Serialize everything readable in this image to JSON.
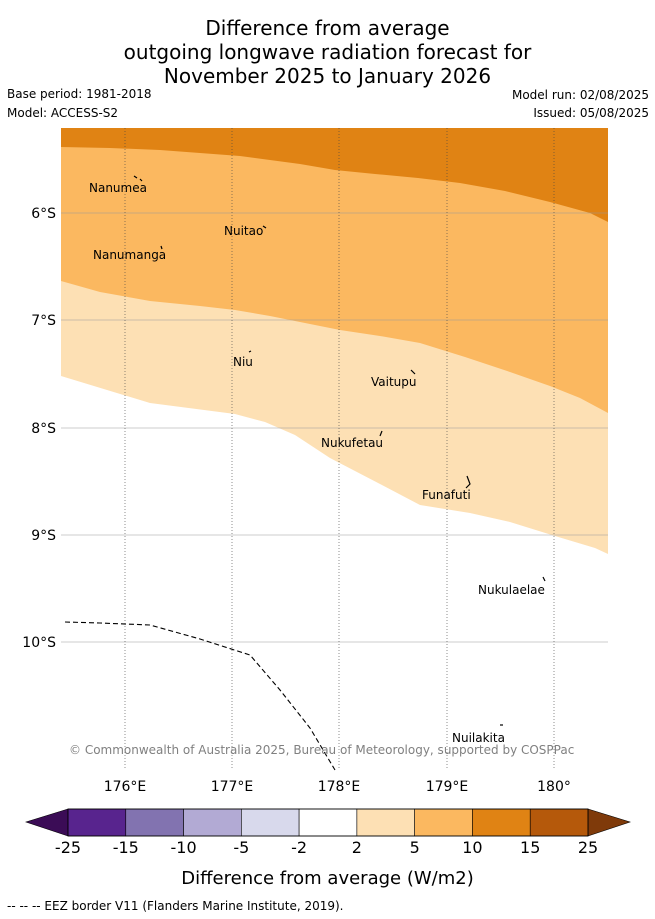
{
  "title": {
    "line1": "Difference from average",
    "line2": "outgoing longwave radiation forecast for",
    "line3": "November 2025 to January 2026"
  },
  "meta": {
    "base_period": "Base period: 1981-2018",
    "model": "Model: ACCESS-S2",
    "model_run": "Model run: 02/08/2025",
    "issued": "Issued: 05/08/2025"
  },
  "map": {
    "lon_ticks": [
      "176°E",
      "177°E",
      "178°E",
      "179°E",
      "180°"
    ],
    "lat_ticks": [
      "6°S",
      "7°S",
      "8°S",
      "9°S",
      "10°S"
    ],
    "islands": [
      "Nanumea",
      "Nuitao",
      "Nanumanga",
      "Niu",
      "Vaitupu",
      "Nukufetau",
      "Funafuti",
      "Nukulaelae",
      "Nuilakita"
    ],
    "copyright": "© Commonwealth of Australia 2025, Bureau of Meteorology, supported by COSPPac",
    "band_colors": {
      "band_15_10": "#e08314",
      "band_10_5": "#fbb860",
      "band_5_2": "#fde0b4",
      "band_2_m2": "#ffffff"
    }
  },
  "colorbar": {
    "ticks": [
      "-25",
      "-15",
      "-10",
      "-5",
      "-2",
      "2",
      "5",
      "10",
      "15",
      "25"
    ],
    "colors": [
      "#58248e",
      "#8273b0",
      "#b2aad4",
      "#d8d9ec",
      "#ffffff",
      "#fde0b4",
      "#fbb860",
      "#e08314",
      "#b5590b"
    ],
    "low_extend_color": "#3b0c56",
    "high_extend_color": "#7f3a0a",
    "label": "Difference from average (W/m2)"
  },
  "footer": "-- -- -- EEZ border V11 (Flanders Marine Institute, 2019)."
}
